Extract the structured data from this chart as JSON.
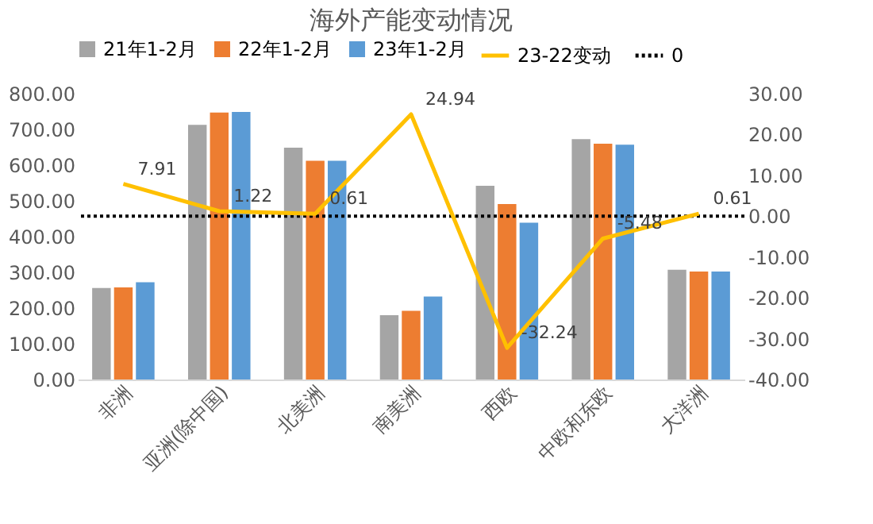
{
  "chart_data": {
    "type": "bar",
    "title": "海外产能变动情况",
    "categories": [
      "非洲",
      "亚洲(除中国)",
      "北美洲",
      "南美洲",
      "西欧",
      "中欧和东欧",
      "大洋洲"
    ],
    "series": [
      {
        "name": "21年1-2月",
        "color": "#a5a5a5",
        "values": [
          256,
          713,
          649,
          180,
          542,
          673,
          307
        ]
      },
      {
        "name": "22年1-2月",
        "color": "#ed7d31",
        "values": [
          258,
          747,
          612,
          192,
          491,
          660,
          302
        ]
      },
      {
        "name": "23年1-2月",
        "color": "#5b9bd5",
        "values": [
          272,
          749,
          612,
          232,
          439,
          657,
          302
        ]
      },
      {
        "name": "23-22变动",
        "color": "#ffc000",
        "type": "line",
        "axis": "y2",
        "data_labels": true,
        "values": [
          7.91,
          1.22,
          0.61,
          24.94,
          -32.24,
          -5.48,
          0.61
        ]
      }
    ],
    "ylim": [
      0,
      800
    ],
    "yticks": [
      {
        "value": 0,
        "label": "0.00"
      },
      {
        "value": 100,
        "label": "100.00"
      },
      {
        "value": 200,
        "label": "200.00"
      },
      {
        "value": 300,
        "label": "300.00"
      },
      {
        "value": 400,
        "label": "400.00"
      },
      {
        "value": 500,
        "label": "500.00"
      },
      {
        "value": 600,
        "label": "600.00"
      },
      {
        "value": 700,
        "label": "700.00"
      },
      {
        "value": 800,
        "label": "800.00"
      }
    ],
    "y2lim": [
      -40,
      30
    ],
    "y2ticks": [
      {
        "value": -40,
        "label": "-40.00"
      },
      {
        "value": -30,
        "label": "-30.00"
      },
      {
        "value": -20,
        "label": "-20.00"
      },
      {
        "value": -10,
        "label": "-10.00"
      },
      {
        "value": 0,
        "label": "0.00"
      },
      {
        "value": 10,
        "label": "10.00"
      },
      {
        "value": 20,
        "label": "20.00"
      },
      {
        "value": 30,
        "label": "30.00"
      }
    ],
    "ref_lines": [
      {
        "axis": "y2",
        "value": 0,
        "label": "0",
        "color": "#000000",
        "line_style": "dotted"
      }
    ],
    "legend": "top",
    "grid": false
  }
}
